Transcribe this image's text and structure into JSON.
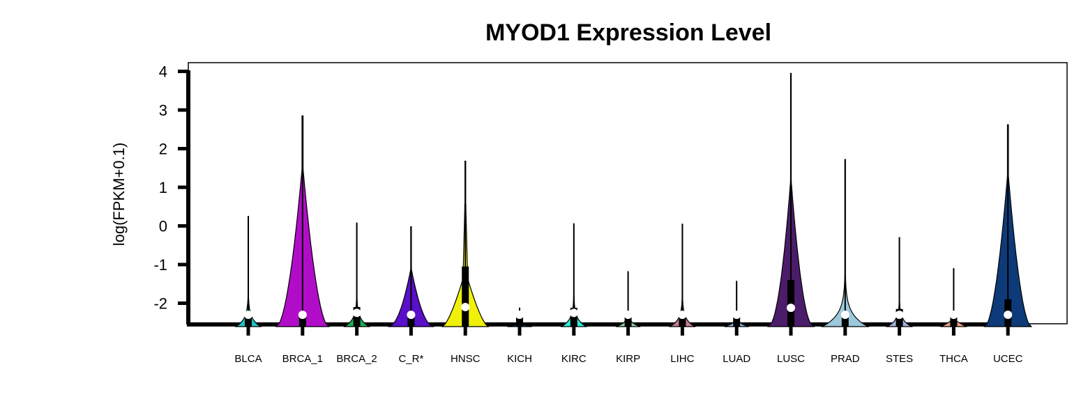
{
  "chart_data": {
    "type": "violin",
    "title": "MYOD1 Expression Level",
    "xlabel": "",
    "ylabel": "log(FPKM+0.1)",
    "ylim": [
      -2.55,
      4.2
    ],
    "yticks": [
      "-2",
      "-1",
      "0",
      "1",
      "2",
      "3",
      "4"
    ],
    "ytick_values": [
      -2,
      -1,
      0,
      1,
      2,
      3,
      4
    ],
    "grid": false,
    "legend": "none",
    "categories": [
      "BLCA",
      "BRCA_1",
      "BRCA_2",
      "C_R*",
      "HNSC",
      "KICH",
      "KIRC",
      "KIRP",
      "LIHC",
      "LUAD",
      "LUSC",
      "PRAD",
      "STES",
      "THCA",
      "UCEC"
    ],
    "series": [
      {
        "category": "BLCA",
        "color": "#1FC3C3",
        "min": -2.3,
        "max": 0.25,
        "median": -2.3,
        "q1": -2.3,
        "q3": -2.3,
        "width": 0.42,
        "shape": "bottom"
      },
      {
        "category": "BRCA_1",
        "color": "#B10DC9",
        "min": -2.3,
        "max": 2.85,
        "median": -2.3,
        "q1": -2.3,
        "q3": -2.3,
        "width": 0.9,
        "shape": "tall"
      },
      {
        "category": "BRCA_2",
        "color": "#1BAF55",
        "min": -2.3,
        "max": 0.08,
        "median": -2.25,
        "q1": -2.3,
        "q3": -2.1,
        "width": 0.42,
        "shape": "bottom"
      },
      {
        "category": "C_R*",
        "color": "#5A0FC8",
        "min": -2.3,
        "max": -0.02,
        "median": -2.3,
        "q1": -2.3,
        "q3": -2.3,
        "width": 0.78,
        "shape": "mid"
      },
      {
        "category": "HNSC",
        "color": "#F0F00A",
        "min": -2.3,
        "max": 1.68,
        "median": -2.1,
        "q1": -2.3,
        "q3": -1.05,
        "width": 0.78,
        "shape": "hnsc"
      },
      {
        "category": "KICH",
        "color": "#2255BB",
        "min": -2.3,
        "max": -2.12,
        "median": -2.3,
        "q1": -2.3,
        "q3": -2.3,
        "width": 0.42,
        "shape": "flat"
      },
      {
        "category": "KIRC",
        "color": "#30EEDC",
        "min": -2.3,
        "max": 0.06,
        "median": -2.25,
        "q1": -2.3,
        "q3": -2.12,
        "width": 0.42,
        "shape": "bottom"
      },
      {
        "category": "KIRP",
        "color": "#8FD19E",
        "min": -2.3,
        "max": -1.18,
        "median": -2.3,
        "q1": -2.3,
        "q3": -2.3,
        "width": 0.42,
        "shape": "bottom"
      },
      {
        "category": "LIHC",
        "color": "#C47A95",
        "min": -2.3,
        "max": 0.05,
        "median": -2.3,
        "q1": -2.3,
        "q3": -2.3,
        "width": 0.42,
        "shape": "bottom"
      },
      {
        "category": "LUAD",
        "color": "#7FB1DD",
        "min": -2.3,
        "max": -1.43,
        "median": -2.3,
        "q1": -2.3,
        "q3": -2.3,
        "width": 0.42,
        "shape": "bottom"
      },
      {
        "category": "LUSC",
        "color": "#4B1C69",
        "min": -2.3,
        "max": 3.95,
        "median": -2.12,
        "q1": -2.3,
        "q3": -1.4,
        "width": 0.78,
        "shape": "mid"
      },
      {
        "category": "PRAD",
        "color": "#9CC8DC",
        "min": -2.3,
        "max": 1.72,
        "median": -2.3,
        "q1": -2.3,
        "q3": -2.3,
        "width": 0.78,
        "shape": "bottom"
      },
      {
        "category": "STES",
        "color": "#A3B2DD",
        "min": -2.3,
        "max": -0.3,
        "median": -2.3,
        "q1": -2.3,
        "q3": -2.15,
        "width": 0.42,
        "shape": "bottom"
      },
      {
        "category": "THCA",
        "color": "#E8A080",
        "min": -2.3,
        "max": -1.1,
        "median": -2.3,
        "q1": -2.3,
        "q3": -2.3,
        "width": 0.42,
        "shape": "flat"
      },
      {
        "category": "UCEC",
        "color": "#0D3A78",
        "min": -2.3,
        "max": 2.62,
        "median": -2.3,
        "q1": -2.3,
        "q3": -1.9,
        "width": 0.8,
        "shape": "tall"
      }
    ]
  }
}
